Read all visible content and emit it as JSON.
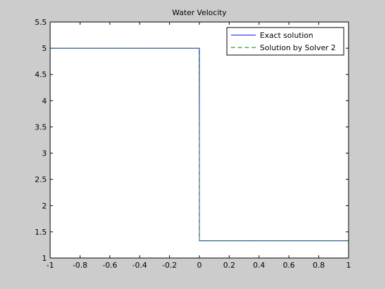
{
  "chart_data": {
    "type": "line",
    "title": "Water Velocity",
    "xlabel": "",
    "ylabel": "",
    "xlim": [
      -1,
      1
    ],
    "ylim": [
      1,
      5.5
    ],
    "xticks": [
      -1,
      -0.8,
      -0.6,
      -0.4,
      -0.2,
      0,
      0.2,
      0.4,
      0.6,
      0.8,
      1
    ],
    "xtick_labels": [
      "-1",
      "-0.8",
      "-0.6",
      "-0.4",
      "-0.2",
      "0",
      "0.2",
      "0.4",
      "0.6",
      "0.8",
      "1"
    ],
    "yticks": [
      1,
      1.5,
      2,
      2.5,
      3,
      3.5,
      4,
      4.5,
      5,
      5.5
    ],
    "ytick_labels": [
      "1",
      "1.5",
      "2",
      "2.5",
      "3",
      "3.5",
      "4",
      "4.5",
      "5",
      "5.5"
    ],
    "grid": false,
    "legend_position": "top-right",
    "series": [
      {
        "name": "Exact solution",
        "color": "#0000ff",
        "dash": "solid",
        "x": [
          -1,
          0,
          0,
          1
        ],
        "y": [
          5,
          5,
          1.33,
          1.33
        ]
      },
      {
        "name": "Solution by Solver 2",
        "color": "#008000",
        "dash": "dashed",
        "x": [
          -1,
          -0.002,
          0,
          0,
          0.002,
          1
        ],
        "y": [
          5,
          5,
          3.15,
          1.33,
          1.33,
          1.33
        ]
      }
    ]
  }
}
